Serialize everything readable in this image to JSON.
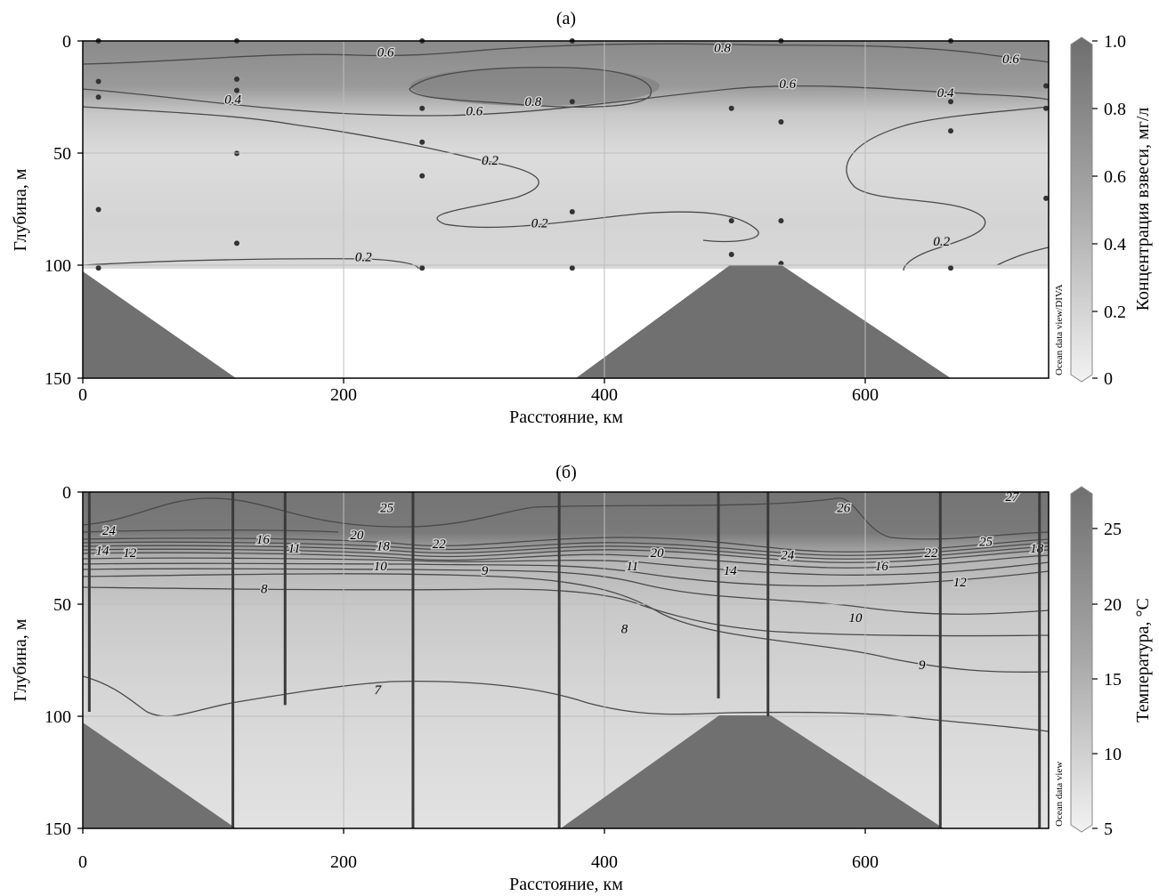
{
  "chart_data": [
    {
      "type": "heatmap",
      "panel_label": "(а)",
      "title": "",
      "xlabel": "Расстояние, км",
      "ylabel": "Глубина, м",
      "xlim": [
        0,
        740
      ],
      "ylim": [
        150,
        0
      ],
      "x_ticks": [
        "0",
        "200",
        "400",
        "600"
      ],
      "y_ticks": [
        "0",
        "50",
        "100",
        "150"
      ],
      "grid": true,
      "colorbar": {
        "label": "Концентрация взвеси, мг/л",
        "min": 0,
        "max": 1.0,
        "ticks": [
          "0",
          "0.2",
          "0.4",
          "0.6",
          "0.8",
          "1.0"
        ]
      },
      "watermark": "Ocean data view/DIVA",
      "contour_labels": [
        {
          "text": "0.6",
          "x": 232,
          "y": 5
        },
        {
          "text": "0.8",
          "x": 490,
          "y": 3
        },
        {
          "text": "0.6",
          "x": 711,
          "y": 8
        },
        {
          "text": "0.4",
          "x": 115,
          "y": 26
        },
        {
          "text": "0.6",
          "x": 300,
          "y": 31
        },
        {
          "text": "0.8",
          "x": 345,
          "y": 27
        },
        {
          "text": "0.6",
          "x": 540,
          "y": 19
        },
        {
          "text": "0.4",
          "x": 661,
          "y": 23
        },
        {
          "text": "0.2",
          "x": 312,
          "y": 53
        },
        {
          "text": "0.2",
          "x": 350,
          "y": 81
        },
        {
          "text": "0.2",
          "x": 658,
          "y": 89
        },
        {
          "text": "0.2",
          "x": 215,
          "y": 96
        }
      ],
      "sample_points": [
        {
          "x": 12,
          "y": 0
        },
        {
          "x": 12,
          "y": 18
        },
        {
          "x": 12,
          "y": 25
        },
        {
          "x": 12,
          "y": 75
        },
        {
          "x": 12,
          "y": 101
        },
        {
          "x": 118,
          "y": 0
        },
        {
          "x": 118,
          "y": 17
        },
        {
          "x": 118,
          "y": 22
        },
        {
          "x": 118,
          "y": 50
        },
        {
          "x": 118,
          "y": 90
        },
        {
          "x": 260,
          "y": 0
        },
        {
          "x": 260,
          "y": 30
        },
        {
          "x": 260,
          "y": 45
        },
        {
          "x": 260,
          "y": 60
        },
        {
          "x": 260,
          "y": 101
        },
        {
          "x": 375,
          "y": 0
        },
        {
          "x": 375,
          "y": 27
        },
        {
          "x": 375,
          "y": 76
        },
        {
          "x": 375,
          "y": 101
        },
        {
          "x": 497,
          "y": 30
        },
        {
          "x": 497,
          "y": 80
        },
        {
          "x": 497,
          "y": 95
        },
        {
          "x": 535,
          "y": 0
        },
        {
          "x": 535,
          "y": 36
        },
        {
          "x": 535,
          "y": 80
        },
        {
          "x": 535,
          "y": 99
        },
        {
          "x": 665,
          "y": 0
        },
        {
          "x": 665,
          "y": 27
        },
        {
          "x": 665,
          "y": 40
        },
        {
          "x": 665,
          "y": 101
        },
        {
          "x": 738,
          "y": 20
        },
        {
          "x": 738,
          "y": 30
        },
        {
          "x": 738,
          "y": 70
        }
      ]
    },
    {
      "type": "heatmap",
      "panel_label": "(б)",
      "title": "",
      "xlabel": "Расстояние, км",
      "ylabel": "Глубина, м",
      "xlim": [
        0,
        740
      ],
      "ylim": [
        150,
        0
      ],
      "x_ticks": [
        "0",
        "200",
        "400",
        "600"
      ],
      "y_ticks": [
        "0",
        "50",
        "100",
        "150"
      ],
      "grid": true,
      "colorbar": {
        "label": "Температура, °С",
        "min": 5,
        "max": 27.5,
        "ticks": [
          "5",
          "10",
          "15",
          "20",
          "25"
        ]
      },
      "watermark": "Ocean data view",
      "contour_labels": [
        {
          "text": "24",
          "x": 20,
          "y": 17
        },
        {
          "text": "25",
          "x": 233,
          "y": 7
        },
        {
          "text": "26",
          "x": 583,
          "y": 7
        },
        {
          "text": "27",
          "x": 712,
          "y": 2
        },
        {
          "text": "14",
          "x": 15,
          "y": 26
        },
        {
          "text": "12",
          "x": 36,
          "y": 27
        },
        {
          "text": "16",
          "x": 138,
          "y": 21
        },
        {
          "text": "11",
          "x": 162,
          "y": 25
        },
        {
          "text": "20",
          "x": 210,
          "y": 19
        },
        {
          "text": "18",
          "x": 230,
          "y": 24
        },
        {
          "text": "22",
          "x": 273,
          "y": 23
        },
        {
          "text": "10",
          "x": 228,
          "y": 33
        },
        {
          "text": "9",
          "x": 308,
          "y": 35
        },
        {
          "text": "8",
          "x": 139,
          "y": 43
        },
        {
          "text": "20",
          "x": 440,
          "y": 27
        },
        {
          "text": "11",
          "x": 421,
          "y": 33
        },
        {
          "text": "24",
          "x": 540,
          "y": 28
        },
        {
          "text": "14",
          "x": 496,
          "y": 35
        },
        {
          "text": "16",
          "x": 612,
          "y": 33
        },
        {
          "text": "22",
          "x": 650,
          "y": 27
        },
        {
          "text": "25",
          "x": 692,
          "y": 22
        },
        {
          "text": "18",
          "x": 731,
          "y": 25
        },
        {
          "text": "12",
          "x": 672,
          "y": 40
        },
        {
          "text": "10",
          "x": 592,
          "y": 56
        },
        {
          "text": "8",
          "x": 415,
          "y": 61
        },
        {
          "text": "9",
          "x": 643,
          "y": 77
        },
        {
          "text": "7",
          "x": 226,
          "y": 88
        }
      ],
      "station_profiles": [
        {
          "x": 5,
          "depth": 98
        },
        {
          "x": 115,
          "depth": 150
        },
        {
          "x": 155,
          "depth": 95
        },
        {
          "x": 253,
          "depth": 150
        },
        {
          "x": 365,
          "depth": 150
        },
        {
          "x": 487,
          "depth": 92
        },
        {
          "x": 525,
          "depth": 100
        },
        {
          "x": 657,
          "depth": 150
        },
        {
          "x": 733,
          "depth": 150
        }
      ]
    }
  ]
}
